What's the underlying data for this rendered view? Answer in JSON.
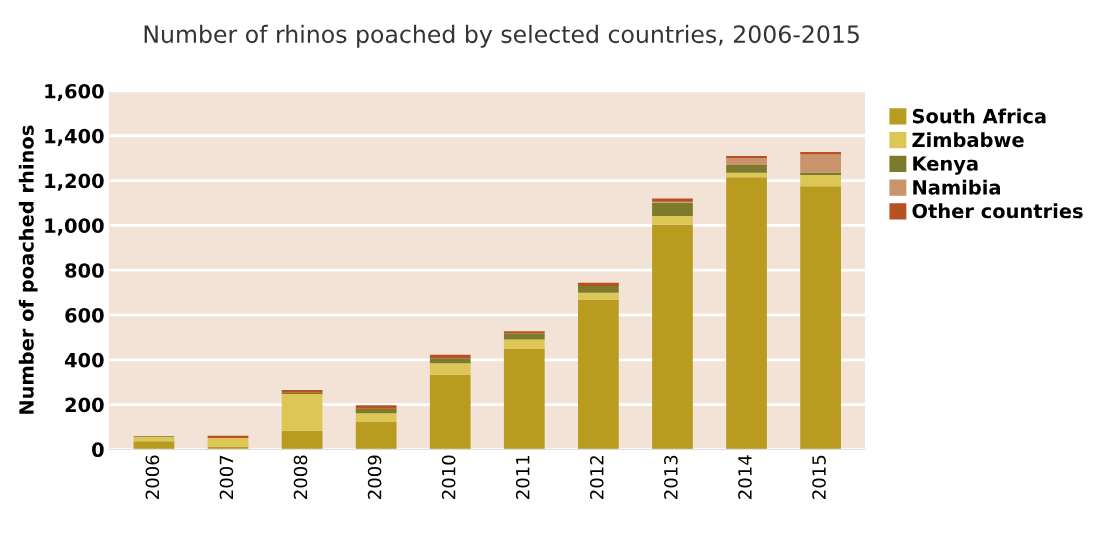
{
  "chart_data": {
    "type": "bar",
    "title": "Number of rhinos poached by selected countries, 2006-2015",
    "ylabel": "Number of poached rhinos",
    "categories": [
      "2006",
      "2007",
      "2008",
      "2009",
      "2010",
      "2011",
      "2012",
      "2013",
      "2014",
      "2015"
    ],
    "stacked": true,
    "series": [
      {
        "name": "South Africa",
        "color": "#b99c1f",
        "values": [
          36,
          13,
          83,
          122,
          333,
          448,
          668,
          1004,
          1215,
          1175
        ]
      },
      {
        "name": "Zimbabwe",
        "color": "#dcc655",
        "values": [
          21,
          38,
          164,
          39,
          52,
          42,
          31,
          38,
          20,
          50
        ]
      },
      {
        "name": "Kenya",
        "color": "#7e7a2b",
        "values": [
          3,
          null,
          6,
          21,
          22,
          27,
          30,
          59,
          35,
          11
        ]
      },
      {
        "name": "Namibia",
        "color": "#c9946b",
        "values": [
          0,
          0,
          0,
          0,
          null,
          null,
          null,
          4,
          30,
          80
        ]
      },
      {
        "name": "Other countries",
        "color": "#b5521f",
        "values": [
          0,
          10,
          12,
          15,
          15,
          10,
          15,
          15,
          10,
          12
        ]
      }
    ],
    "ylim": [
      0,
      1600
    ],
    "yticks": [
      {
        "value": 0,
        "label": "0"
      },
      {
        "value": 200,
        "label": "200"
      },
      {
        "value": 400,
        "label": "400"
      },
      {
        "value": 600,
        "label": "600"
      },
      {
        "value": 800,
        "label": "800"
      },
      {
        "value": 1000,
        "label": "1,000"
      },
      {
        "value": 1200,
        "label": "1,200"
      },
      {
        "value": 1400,
        "label": "1,400"
      },
      {
        "value": 1600,
        "label": "1,600"
      }
    ],
    "grid": "y",
    "legend": "right"
  }
}
